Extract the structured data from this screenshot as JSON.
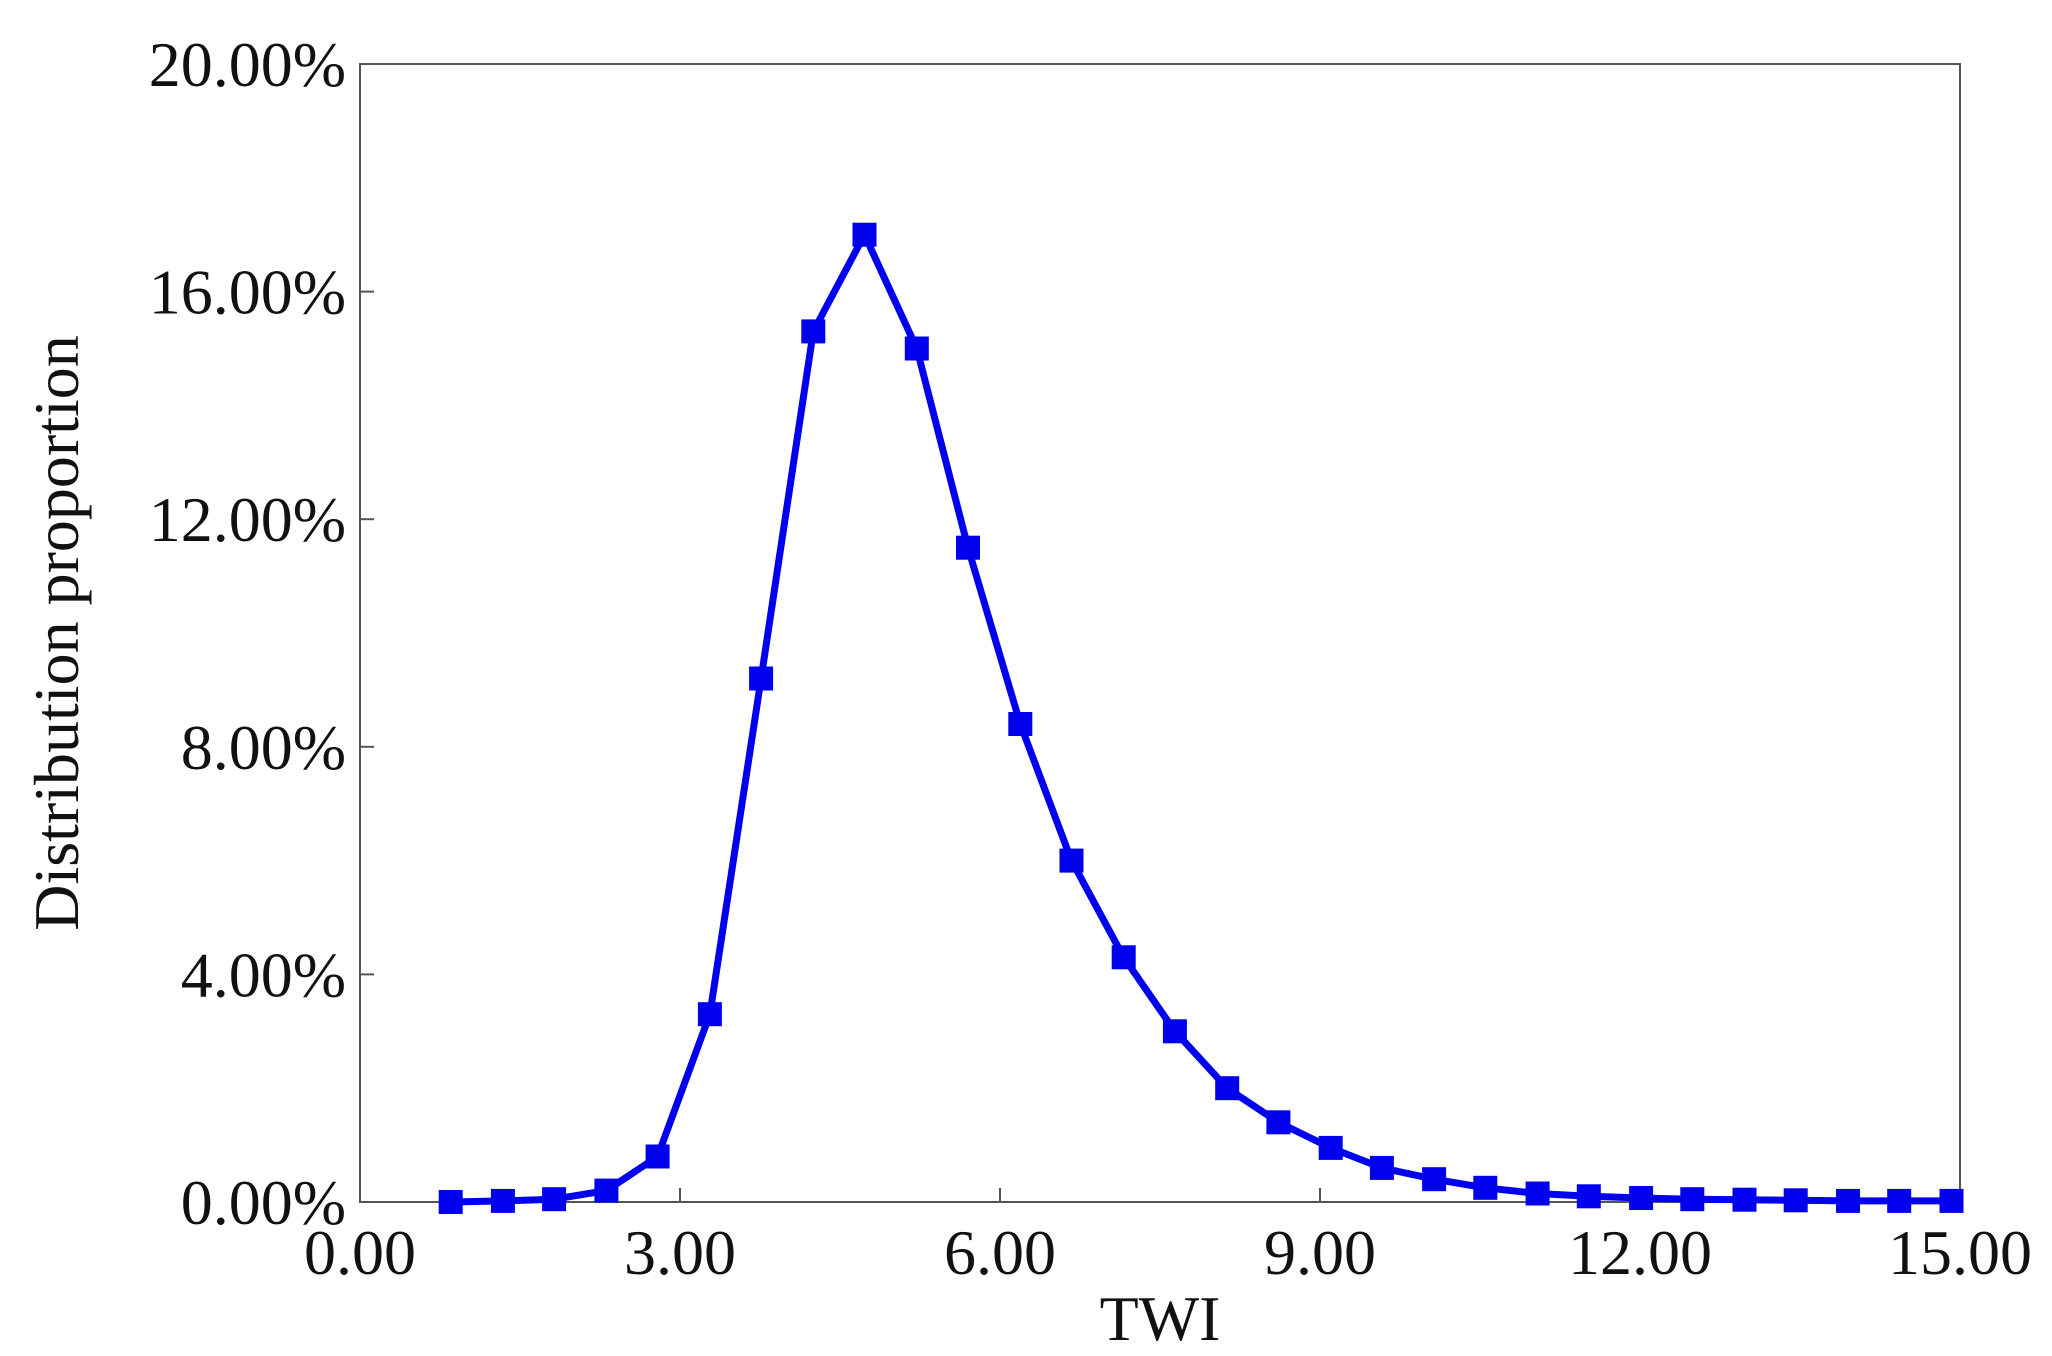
{
  "chart_data": {
    "type": "line",
    "title": "",
    "xlabel": "TWI",
    "ylabel": "Distribution proportion",
    "xlim": [
      0,
      15
    ],
    "ylim": [
      0,
      20
    ],
    "x_ticks": [
      0,
      3,
      6,
      9,
      12,
      15
    ],
    "x_tick_labels": [
      "0.00",
      "3.00",
      "6.00",
      "9.00",
      "12.00",
      "15.00"
    ],
    "y_ticks": [
      0,
      4,
      8,
      12,
      16,
      20
    ],
    "y_tick_labels": [
      "0.00%",
      "4.00%",
      "8.00%",
      "12.00%",
      "16.00%",
      "20.00%"
    ],
    "grid": false,
    "legend": "none",
    "series_color": "#0000ee",
    "marker": "square",
    "series": [
      {
        "x": [
          0.85,
          1.34,
          1.82,
          2.31,
          2.79,
          3.28,
          3.76,
          4.25,
          4.73,
          5.22,
          5.7,
          6.19,
          6.67,
          7.16,
          7.64,
          8.13,
          8.61,
          9.1,
          9.58,
          10.07,
          10.55,
          11.04,
          11.52,
          12.01,
          12.49,
          12.98,
          13.46,
          13.95,
          14.43,
          14.92
        ],
        "y": [
          0.0,
          0.02,
          0.05,
          0.2,
          0.8,
          3.3,
          9.2,
          15.3,
          17.0,
          15.0,
          11.5,
          8.4,
          6.0,
          4.3,
          3.0,
          2.0,
          1.4,
          0.95,
          0.6,
          0.4,
          0.25,
          0.15,
          0.1,
          0.07,
          0.05,
          0.04,
          0.03,
          0.02,
          0.02,
          0.02
        ]
      }
    ]
  }
}
